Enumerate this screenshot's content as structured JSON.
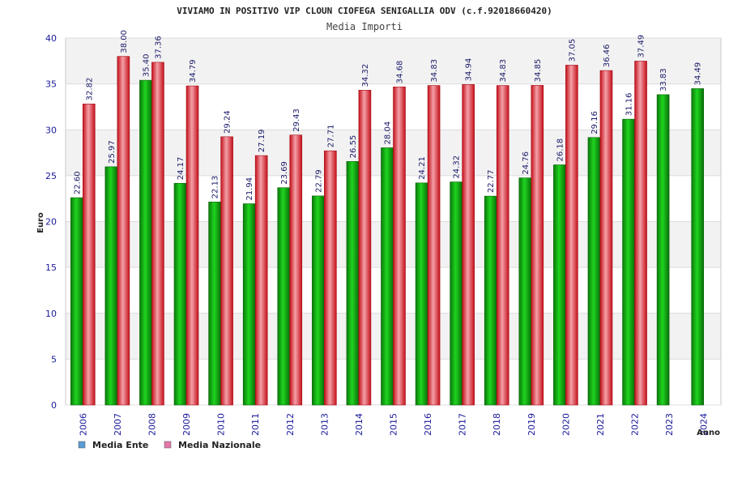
{
  "header": {
    "title": "VIVIAMO IN POSITIVO VIP CLOUN CIOFEGA SENIGALLIA ODV (c.f.92018660420)",
    "subtitle": "Media Importi"
  },
  "chart_data": {
    "type": "bar",
    "ylabel": "Euro",
    "xlabel": "Anno",
    "ylim": [
      0,
      40
    ],
    "yticks": [
      0,
      5,
      10,
      15,
      20,
      25,
      30,
      35,
      40
    ],
    "grid": "horizontal",
    "legend_position": "bottom-left",
    "categories": [
      "2006",
      "2007",
      "2008",
      "2009",
      "2010",
      "2011",
      "2012",
      "2013",
      "2014",
      "2015",
      "2016",
      "2017",
      "2018",
      "2019",
      "2020",
      "2021",
      "2022",
      "2023",
      "2024"
    ],
    "series": [
      {
        "name": "Media Ente",
        "legend_color": "#5b9bd5",
        "bar_color": "#0a9e0a",
        "values": [
          22.6,
          25.97,
          35.4,
          24.17,
          22.13,
          21.94,
          23.69,
          22.79,
          26.55,
          28.04,
          24.21,
          24.32,
          22.77,
          24.76,
          26.18,
          29.16,
          31.16,
          33.83,
          34.49
        ],
        "labels": [
          "22.60",
          "25.97",
          "35.40",
          "24.17",
          "22.13",
          "21.94",
          "23.69",
          "22.79",
          "26.55",
          "28.04",
          "24.21",
          "24.32",
          "22.77",
          "24.76",
          "26.18",
          "29.16",
          "31.16",
          "33.83",
          "34.49"
        ]
      },
      {
        "name": "Media Nazionale",
        "legend_color": "#e377a8",
        "bar_color": "#e8202a",
        "values": [
          32.82,
          38.0,
          37.36,
          34.79,
          29.24,
          27.19,
          29.43,
          27.71,
          34.32,
          34.68,
          34.83,
          34.94,
          34.83,
          34.85,
          37.05,
          36.46,
          37.49,
          null,
          null
        ],
        "labels": [
          "32.82",
          "38.00",
          "37.36",
          "34.79",
          "29.24",
          "27.19",
          "29.43",
          "27.71",
          "34.32",
          "34.68",
          "34.83",
          "34.94",
          "34.83",
          "34.85",
          "37.05",
          "36.46",
          "37.49",
          null,
          null
        ]
      }
    ]
  }
}
